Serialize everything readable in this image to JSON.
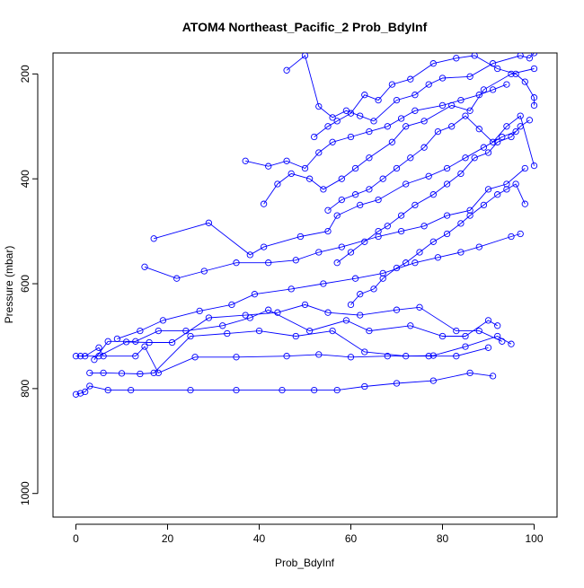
{
  "chart_data": {
    "type": "scatter",
    "title": "ATOM4 Northeast_Pacific_2 Prob_BdyInf",
    "xlabel": "Prob_BdyInf",
    "ylabel": "Pressure (mbar)",
    "xlim": [
      -5,
      105
    ],
    "ylim": [
      1045,
      160
    ],
    "y_reversed": true,
    "x_ticks": [
      0,
      20,
      40,
      60,
      80,
      100
    ],
    "y_ticks": [
      200,
      400,
      600,
      800,
      1000
    ],
    "grid": false,
    "legend": "none",
    "color": "#0000ff",
    "marker": "open-circle",
    "series": [
      {
        "x": [
          0,
          1,
          2,
          3,
          7,
          12,
          25,
          35,
          45,
          52,
          57,
          63,
          70,
          78,
          86,
          91
        ],
        "y": [
          811,
          809,
          806,
          795,
          803,
          803,
          803,
          803,
          803,
          803,
          803,
          796,
          790,
          785,
          770,
          776
        ]
      },
      {
        "x": [
          0,
          2,
          5,
          6,
          13,
          15,
          18,
          26,
          35,
          46,
          53,
          60,
          68,
          77,
          83,
          90
        ],
        "y": [
          738,
          738,
          722,
          738,
          738,
          720,
          770,
          740,
          740,
          738,
          735,
          740,
          738,
          738,
          738,
          722
        ]
      },
      {
        "x": [
          3,
          6,
          10,
          14,
          17,
          25,
          33,
          40,
          48,
          56,
          63,
          72,
          78,
          85,
          92,
          95
        ],
        "y": [
          770,
          770,
          771,
          772,
          770,
          700,
          695,
          690,
          700,
          690,
          730,
          738,
          737,
          720,
          700,
          715
        ]
      },
      {
        "x": [
          1,
          5,
          11,
          16,
          21,
          29,
          37,
          44,
          50,
          55,
          62,
          70,
          75,
          83,
          88,
          93
        ],
        "y": [
          738,
          738,
          711,
          712,
          712,
          665,
          660,
          655,
          640,
          655,
          660,
          650,
          645,
          690,
          690,
          710
        ]
      },
      {
        "x": [
          4,
          7,
          13,
          18,
          24,
          32,
          38,
          42,
          51,
          59,
          64,
          73,
          80,
          85,
          90,
          92
        ],
        "y": [
          745,
          710,
          710,
          690,
          690,
          680,
          665,
          650,
          690,
          670,
          690,
          680,
          700,
          700,
          670,
          680
        ]
      },
      {
        "x": [
          9,
          14,
          19,
          27,
          34,
          39,
          47,
          54,
          61,
          67,
          74,
          79,
          84,
          88,
          95,
          97
        ],
        "y": [
          705,
          690,
          670,
          652,
          640,
          620,
          610,
          600,
          590,
          580,
          560,
          550,
          540,
          530,
          510,
          505
        ]
      },
      {
        "x": [
          15,
          22,
          28,
          35,
          42,
          48,
          53,
          58,
          66,
          71,
          76,
          81,
          86,
          90,
          94,
          98
        ],
        "y": [
          568,
          590,
          576,
          560,
          560,
          555,
          540,
          530,
          510,
          500,
          490,
          470,
          460,
          420,
          410,
          380
        ]
      },
      {
        "x": [
          17,
          29,
          38,
          41,
          49,
          55,
          57,
          62,
          66,
          72,
          77,
          81,
          85,
          89,
          93,
          96
        ],
        "y": [
          514,
          484,
          545,
          530,
          510,
          500,
          470,
          450,
          440,
          410,
          395,
          380,
          360,
          340,
          320,
          310
        ]
      },
      {
        "x": [
          37,
          42,
          46,
          50,
          53,
          56,
          60,
          64,
          68,
          71,
          74,
          80,
          84,
          88,
          91,
          94
        ],
        "y": [
          366,
          376,
          366,
          380,
          350,
          330,
          320,
          310,
          300,
          285,
          270,
          260,
          250,
          240,
          230,
          220
        ]
      },
      {
        "x": [
          41,
          44,
          47,
          51,
          54,
          58,
          61,
          64,
          69,
          72,
          76,
          82,
          86,
          89,
          95,
          100
        ],
        "y": [
          448,
          410,
          390,
          400,
          420,
          400,
          380,
          360,
          330,
          300,
          290,
          260,
          270,
          230,
          200,
          190
        ]
      },
      {
        "x": [
          46,
          50,
          53,
          56,
          59,
          62,
          65,
          70,
          74,
          77,
          80,
          86,
          91,
          97,
          99,
          100
        ],
        "y": [
          193,
          165,
          262,
          283,
          270,
          280,
          290,
          250,
          240,
          220,
          208,
          205,
          180,
          165,
          170,
          160
        ]
      },
      {
        "x": [
          52,
          55,
          57,
          60,
          63,
          66,
          69,
          73,
          78,
          83,
          87,
          92,
          96,
          98,
          100,
          100
        ],
        "y": [
          320,
          300,
          290,
          275,
          240,
          250,
          220,
          210,
          180,
          170,
          165,
          190,
          200,
          215,
          245,
          260
        ]
      },
      {
        "x": [
          55,
          58,
          61,
          64,
          67,
          70,
          73,
          76,
          79,
          82,
          85,
          88,
          91,
          94,
          97,
          100
        ],
        "y": [
          460,
          440,
          430,
          420,
          400,
          380,
          360,
          340,
          310,
          300,
          280,
          305,
          330,
          300,
          280,
          375
        ]
      },
      {
        "x": [
          57,
          60,
          63,
          66,
          68,
          71,
          74,
          78,
          81,
          84,
          87,
          90,
          92,
          95,
          97,
          99
        ],
        "y": [
          560,
          540,
          520,
          500,
          490,
          470,
          450,
          430,
          410,
          390,
          360,
          350,
          330,
          320,
          300,
          288
        ]
      },
      {
        "x": [
          60,
          62,
          65,
          67,
          70,
          72,
          75,
          78,
          81,
          84,
          86,
          89,
          92,
          94,
          96,
          98
        ],
        "y": [
          640,
          620,
          610,
          590,
          570,
          560,
          540,
          520,
          505,
          485,
          470,
          450,
          430,
          420,
          410,
          448
        ]
      }
    ]
  }
}
